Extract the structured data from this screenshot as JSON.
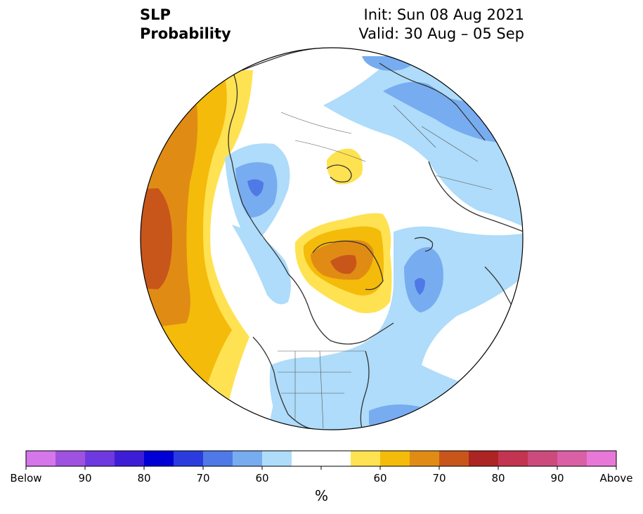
{
  "title": {
    "left_line1": "SLP",
    "left_line2": "Probability",
    "right_line1": "Init: Sun 08 Aug 2021",
    "right_line2": "Valid: 30 Aug – 05 Sep"
  },
  "colorbar": {
    "colors": [
      "#d576ea",
      "#9f52e0",
      "#6e39e0",
      "#3e1dd6",
      "#0000d6",
      "#2a3cde",
      "#4f79e6",
      "#78acf0",
      "#aedcfa",
      "#ffffff",
      "#ffffff",
      "#ffe252",
      "#f4bb0a",
      "#e08c14",
      "#c8561a",
      "#ad2424",
      "#c23450",
      "#cc4a7c",
      "#da60a6",
      "#e878d8"
    ],
    "tick_labels": [
      "Below",
      "90",
      "80",
      "70",
      "60",
      "60",
      "70",
      "80",
      "90",
      "Above"
    ],
    "unit": "%"
  },
  "map_colors": {
    "below_light": "#aedcfa",
    "below_mid": "#78acf0",
    "below_dark": "#4f79e6",
    "below_darkest": "#2a3cde",
    "above_light": "#ffe252",
    "above_mid": "#f4bb0a",
    "above_dark": "#e08c14",
    "above_darkest": "#c8561a",
    "land_lines": "#333333",
    "border_lines": "#555555"
  }
}
